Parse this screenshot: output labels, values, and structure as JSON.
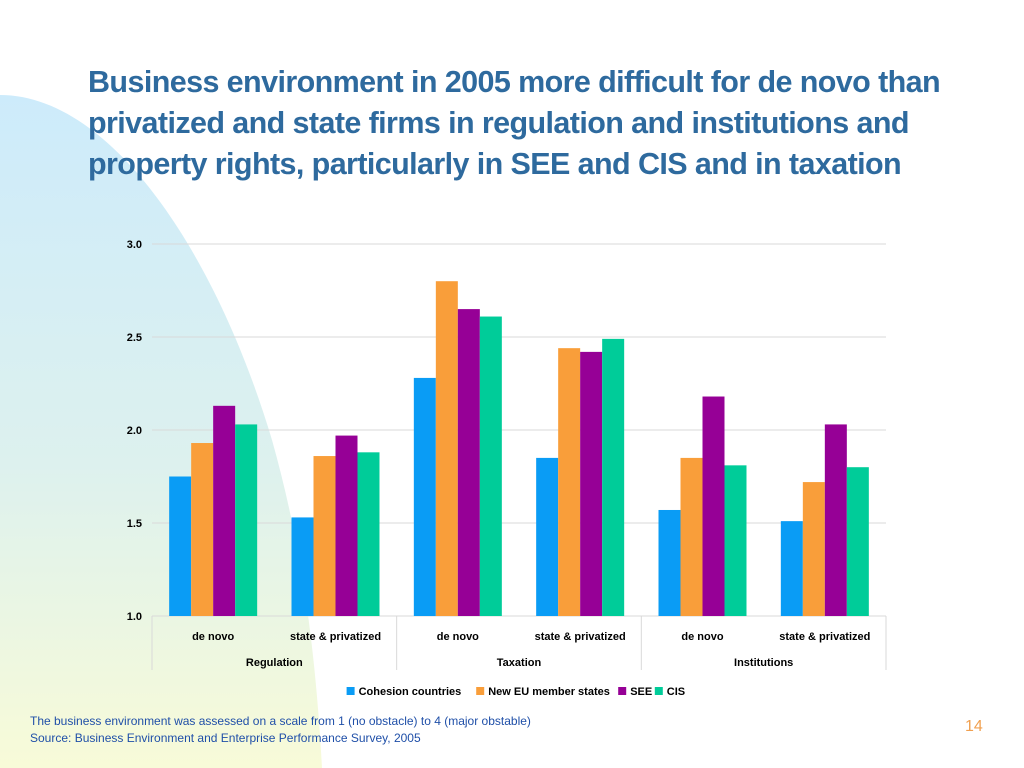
{
  "slide": {
    "title": "Business environment in 2005 more difficult for de novo than privatized and state firms in regulation and institutions and property rights, particularly in SEE and CIS and in taxation",
    "note": "The business environment was assessed on a scale from 1 (no obstacle) to 4 (major obstable)",
    "source": "Source: Business Environment and Enterprise Performance Survey, 2005",
    "page_number": "14"
  },
  "colors": {
    "title": "#2E6A9E",
    "note": "#1F4FA8",
    "page_number": "#F0A050",
    "series": [
      "#0A9CF5",
      "#F99E3A",
      "#960096",
      "#00CC99"
    ]
  },
  "chart_data": {
    "type": "bar",
    "title": "",
    "xlabel": "",
    "ylabel": "",
    "ylim": [
      1.0,
      3.0
    ],
    "yticks": [
      "1.0",
      "1.5",
      "2.0",
      "2.5",
      "3.0"
    ],
    "grid": true,
    "legend_position": "bottom",
    "groups": [
      "Regulation",
      "Taxation",
      "Institutions"
    ],
    "categories": [
      "de novo",
      "state & privatized",
      "de novo",
      "state & privatized",
      "de novo",
      "state & privatized"
    ],
    "series": [
      {
        "name": "Cohesion countries",
        "values": [
          1.75,
          1.53,
          2.28,
          1.85,
          1.57,
          1.51
        ]
      },
      {
        "name": "New EU member states",
        "values": [
          1.93,
          1.86,
          2.8,
          2.44,
          1.85,
          1.72
        ]
      },
      {
        "name": "SEE",
        "values": [
          2.13,
          1.97,
          2.65,
          2.42,
          2.18,
          2.03
        ]
      },
      {
        "name": "CIS",
        "values": [
          2.03,
          1.88,
          2.61,
          2.49,
          1.81,
          1.8
        ]
      }
    ]
  }
}
